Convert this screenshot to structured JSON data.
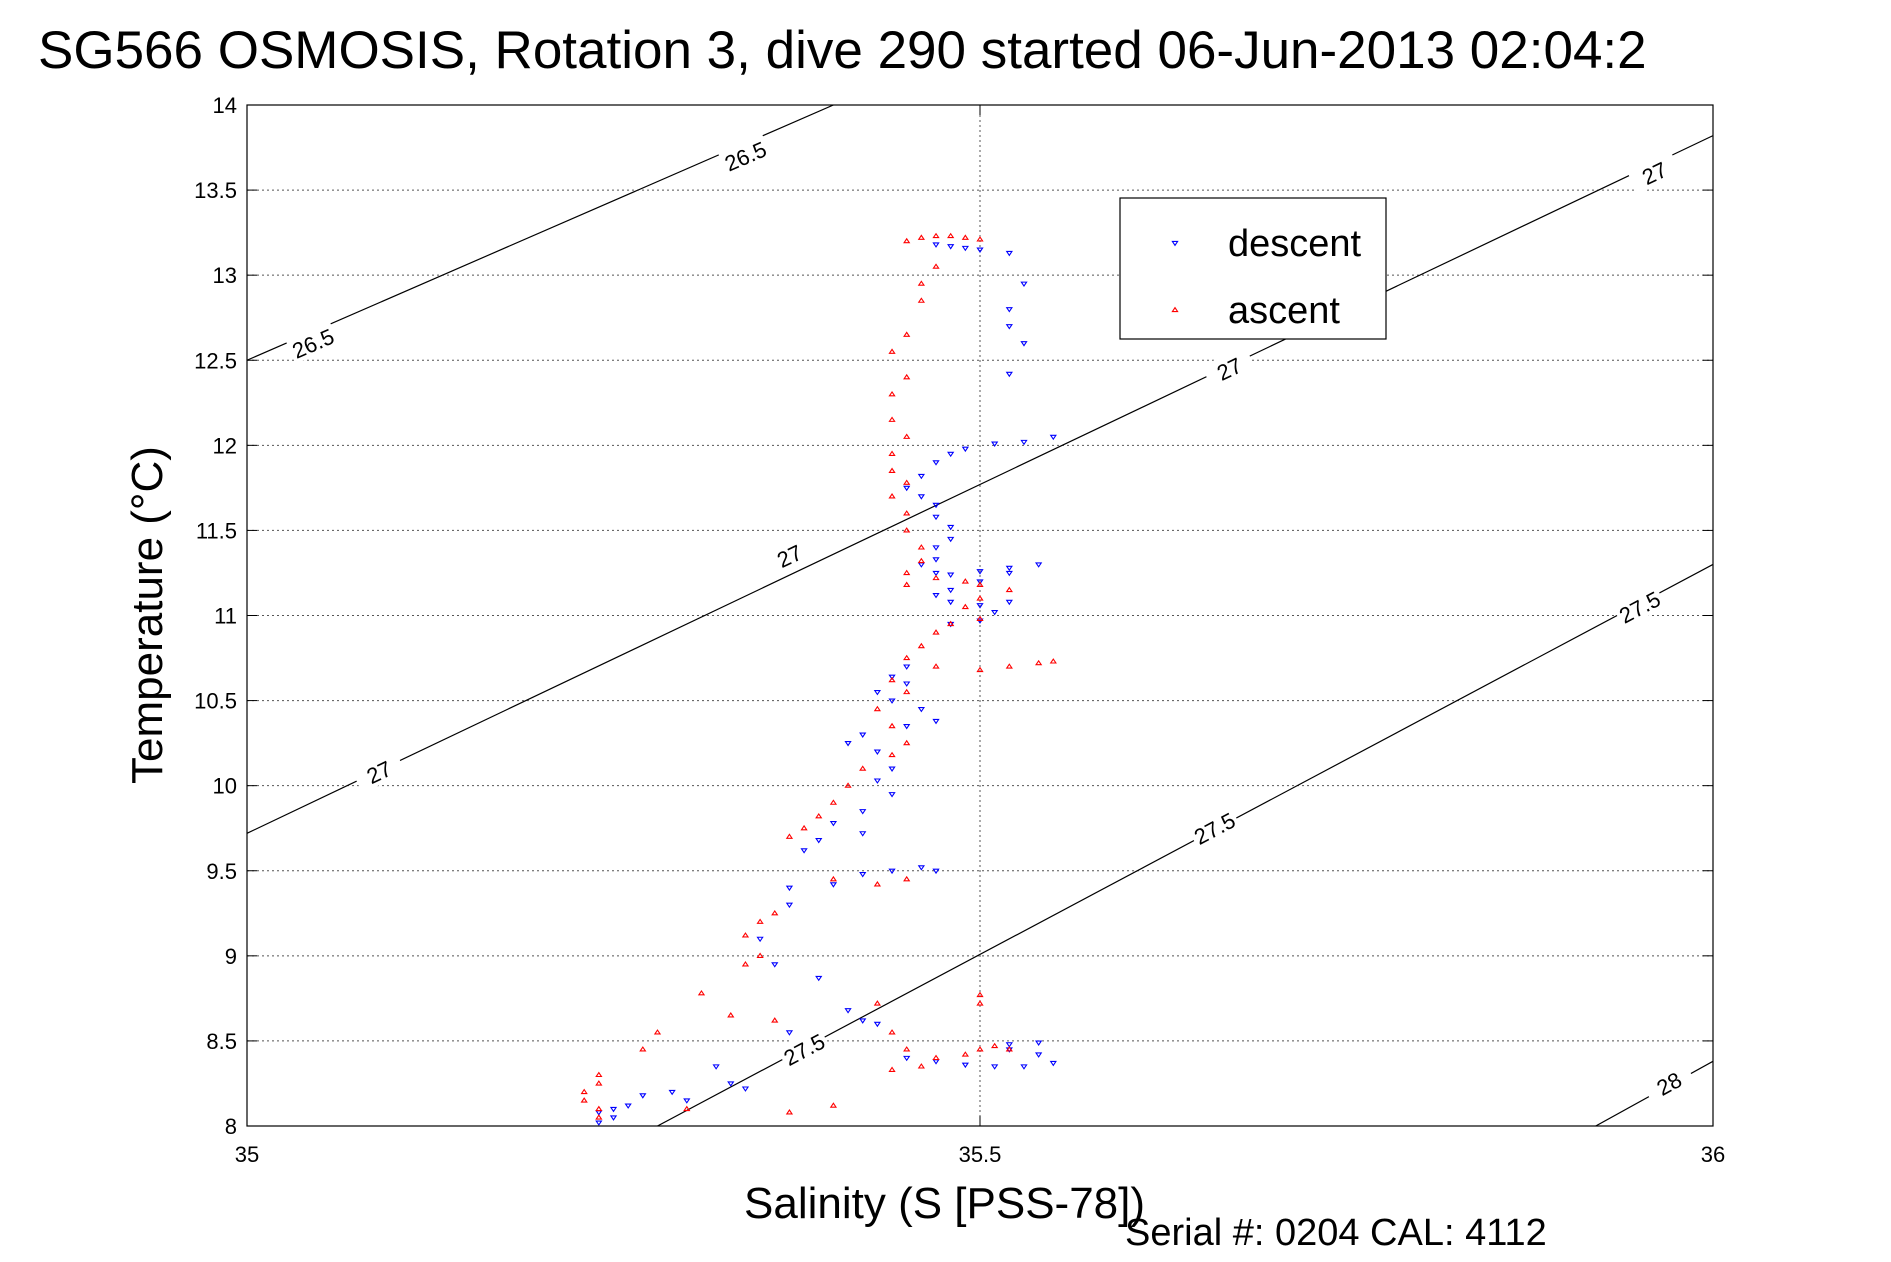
{
  "chart_data": {
    "type": "scatter",
    "title": "SG566 OSMOSIS, Rotation 3, dive 290 started 06-Jun-2013 02:04:2",
    "xlabel": "Salinity (S [PSS-78])",
    "ylabel": "Temperature (°C)",
    "footer": "Serial #: 0204  CAL: 4112",
    "xlim": [
      35,
      36
    ],
    "ylim": [
      8,
      14
    ],
    "x_ticks": [
      35,
      35.5,
      36
    ],
    "x_tick_labels": [
      "35",
      "35.5",
      "36"
    ],
    "y_ticks": [
      8,
      8.5,
      9,
      9.5,
      10,
      10.5,
      11,
      11.5,
      12,
      12.5,
      13,
      13.5,
      14
    ],
    "y_tick_labels": [
      "8",
      "8.5",
      "9",
      "9.5",
      "10",
      "10.5",
      "11",
      "11.5",
      "12",
      "12.5",
      "13",
      "13.5",
      "14"
    ],
    "grid": true,
    "legend": {
      "position": "top-right",
      "entries": [
        "descent",
        "ascent"
      ]
    },
    "isopycnals": [
      {
        "label": "26.5",
        "points": [
          [
            35,
            12.5
          ],
          [
            35.4,
            14
          ]
        ],
        "label_points": [
          [
            35.045,
            12.6
          ],
          [
            35.34,
            13.7
          ]
        ]
      },
      {
        "label": "27",
        "points": [
          [
            35,
            9.72
          ],
          [
            36,
            13.82
          ]
        ],
        "label_points": [
          [
            35.09,
            10.08
          ],
          [
            35.37,
            11.35
          ],
          [
            35.67,
            12.45
          ],
          [
            35.96,
            13.6
          ]
        ]
      },
      {
        "label": "27.5",
        "points": [
          [
            35.28,
            8
          ],
          [
            36,
            11.3
          ]
        ],
        "label_points": [
          [
            35.38,
            8.45
          ],
          [
            35.66,
            9.75
          ],
          [
            35.95,
            11.05
          ]
        ]
      },
      {
        "label": "28",
        "points": [
          [
            35.92,
            8
          ],
          [
            36,
            8.38
          ]
        ],
        "label_points": [
          [
            35.97,
            8.25
          ]
        ]
      }
    ],
    "series": [
      {
        "name": "descent",
        "color": "#0000ff",
        "marker": "triangle-down",
        "points": [
          [
            35.47,
            13.18
          ],
          [
            35.48,
            13.17
          ],
          [
            35.49,
            13.16
          ],
          [
            35.5,
            13.15
          ],
          [
            35.52,
            13.13
          ],
          [
            35.53,
            12.95
          ],
          [
            35.52,
            12.8
          ],
          [
            35.52,
            12.7
          ],
          [
            35.53,
            12.6
          ],
          [
            35.52,
            12.42
          ],
          [
            35.55,
            12.05
          ],
          [
            35.53,
            12.02
          ],
          [
            35.51,
            12.01
          ],
          [
            35.49,
            11.98
          ],
          [
            35.48,
            11.95
          ],
          [
            35.47,
            11.9
          ],
          [
            35.46,
            11.82
          ],
          [
            35.45,
            11.75
          ],
          [
            35.46,
            11.7
          ],
          [
            35.47,
            11.65
          ],
          [
            35.47,
            11.58
          ],
          [
            35.48,
            11.52
          ],
          [
            35.48,
            11.45
          ],
          [
            35.47,
            11.4
          ],
          [
            35.47,
            11.33
          ],
          [
            35.46,
            11.3
          ],
          [
            35.47,
            11.25
          ],
          [
            35.48,
            11.24
          ],
          [
            35.5,
            11.26
          ],
          [
            35.52,
            11.28
          ],
          [
            35.54,
            11.3
          ],
          [
            35.52,
            11.25
          ],
          [
            35.5,
            11.2
          ],
          [
            35.48,
            11.15
          ],
          [
            35.47,
            11.12
          ],
          [
            35.48,
            11.08
          ],
          [
            35.5,
            11.06
          ],
          [
            35.52,
            11.08
          ],
          [
            35.51,
            11.02
          ],
          [
            35.5,
            10.97
          ],
          [
            35.48,
            10.95
          ],
          [
            35.45,
            10.7
          ],
          [
            35.44,
            10.64
          ],
          [
            35.45,
            10.6
          ],
          [
            35.43,
            10.55
          ],
          [
            35.44,
            10.5
          ],
          [
            35.46,
            10.45
          ],
          [
            35.47,
            10.38
          ],
          [
            35.45,
            10.35
          ],
          [
            35.42,
            10.3
          ],
          [
            35.41,
            10.25
          ],
          [
            35.43,
            10.2
          ],
          [
            35.44,
            10.1
          ],
          [
            35.43,
            10.03
          ],
          [
            35.44,
            9.95
          ],
          [
            35.42,
            9.85
          ],
          [
            35.4,
            9.78
          ],
          [
            35.42,
            9.72
          ],
          [
            35.39,
            9.68
          ],
          [
            35.38,
            9.62
          ],
          [
            35.42,
            9.48
          ],
          [
            35.44,
            9.5
          ],
          [
            35.46,
            9.52
          ],
          [
            35.47,
            9.5
          ],
          [
            35.4,
            9.42
          ],
          [
            35.37,
            9.4
          ],
          [
            35.37,
            9.3
          ],
          [
            35.35,
            9.1
          ],
          [
            35.36,
            8.95
          ],
          [
            35.39,
            8.87
          ],
          [
            35.41,
            8.68
          ],
          [
            35.42,
            8.62
          ],
          [
            35.43,
            8.6
          ],
          [
            35.45,
            8.4
          ],
          [
            35.47,
            8.38
          ],
          [
            35.49,
            8.36
          ],
          [
            35.51,
            8.35
          ],
          [
            35.53,
            8.35
          ],
          [
            35.55,
            8.37
          ],
          [
            35.54,
            8.42
          ],
          [
            35.52,
            8.45
          ],
          [
            35.52,
            8.48
          ],
          [
            35.54,
            8.49
          ],
          [
            35.37,
            8.55
          ],
          [
            35.32,
            8.35
          ],
          [
            35.33,
            8.25
          ],
          [
            35.29,
            8.2
          ],
          [
            35.27,
            8.18
          ],
          [
            35.26,
            8.12
          ],
          [
            35.25,
            8.1
          ],
          [
            35.24,
            8.08
          ],
          [
            35.25,
            8.05
          ],
          [
            35.24,
            8.02
          ],
          [
            35.3,
            8.15
          ],
          [
            35.34,
            8.22
          ]
        ]
      },
      {
        "name": "ascent",
        "color": "#ff0000",
        "marker": "triangle-up",
        "points": [
          [
            35.46,
            13.22
          ],
          [
            35.47,
            13.23
          ],
          [
            35.48,
            13.23
          ],
          [
            35.49,
            13.22
          ],
          [
            35.5,
            13.21
          ],
          [
            35.45,
            13.2
          ],
          [
            35.47,
            13.05
          ],
          [
            35.46,
            12.95
          ],
          [
            35.46,
            12.85
          ],
          [
            35.45,
            12.65
          ],
          [
            35.44,
            12.55
          ],
          [
            35.45,
            12.4
          ],
          [
            35.44,
            12.3
          ],
          [
            35.44,
            12.15
          ],
          [
            35.45,
            12.05
          ],
          [
            35.44,
            11.95
          ],
          [
            35.44,
            11.85
          ],
          [
            35.45,
            11.78
          ],
          [
            35.44,
            11.7
          ],
          [
            35.45,
            11.6
          ],
          [
            35.45,
            11.5
          ],
          [
            35.46,
            11.4
          ],
          [
            35.46,
            11.32
          ],
          [
            35.45,
            11.25
          ],
          [
            35.45,
            11.18
          ],
          [
            35.47,
            11.22
          ],
          [
            35.49,
            11.2
          ],
          [
            35.5,
            11.18
          ],
          [
            35.52,
            11.15
          ],
          [
            35.5,
            11.1
          ],
          [
            35.49,
            11.05
          ],
          [
            35.5,
            10.98
          ],
          [
            35.48,
            10.95
          ],
          [
            35.47,
            10.9
          ],
          [
            35.46,
            10.82
          ],
          [
            35.45,
            10.75
          ],
          [
            35.47,
            10.7
          ],
          [
            35.5,
            10.68
          ],
          [
            35.52,
            10.7
          ],
          [
            35.54,
            10.72
          ],
          [
            35.55,
            10.73
          ],
          [
            35.44,
            10.62
          ],
          [
            35.45,
            10.55
          ],
          [
            35.43,
            10.45
          ],
          [
            35.44,
            10.35
          ],
          [
            35.45,
            10.25
          ],
          [
            35.44,
            10.18
          ],
          [
            35.42,
            10.1
          ],
          [
            35.41,
            10.0
          ],
          [
            35.4,
            9.9
          ],
          [
            35.39,
            9.82
          ],
          [
            35.38,
            9.75
          ],
          [
            35.37,
            9.7
          ],
          [
            35.4,
            9.45
          ],
          [
            35.43,
            9.42
          ],
          [
            35.45,
            9.45
          ],
          [
            35.36,
            9.25
          ],
          [
            35.35,
            9.2
          ],
          [
            35.34,
            9.12
          ],
          [
            35.35,
            9.0
          ],
          [
            35.34,
            8.95
          ],
          [
            35.31,
            8.78
          ],
          [
            35.33,
            8.65
          ],
          [
            35.36,
            8.62
          ],
          [
            35.43,
            8.72
          ],
          [
            35.44,
            8.55
          ],
          [
            35.45,
            8.45
          ],
          [
            35.44,
            8.33
          ],
          [
            35.46,
            8.35
          ],
          [
            35.47,
            8.4
          ],
          [
            35.49,
            8.42
          ],
          [
            35.5,
            8.45
          ],
          [
            35.51,
            8.47
          ],
          [
            35.52,
            8.45
          ],
          [
            35.5,
            8.72
          ],
          [
            35.5,
            8.77
          ],
          [
            35.28,
            8.55
          ],
          [
            35.27,
            8.45
          ],
          [
            35.24,
            8.3
          ],
          [
            35.23,
            8.2
          ],
          [
            35.24,
            8.25
          ],
          [
            35.23,
            8.15
          ],
          [
            35.24,
            8.1
          ],
          [
            35.24,
            8.05
          ],
          [
            35.3,
            8.1
          ],
          [
            35.37,
            8.08
          ],
          [
            35.4,
            8.12
          ]
        ]
      }
    ]
  }
}
